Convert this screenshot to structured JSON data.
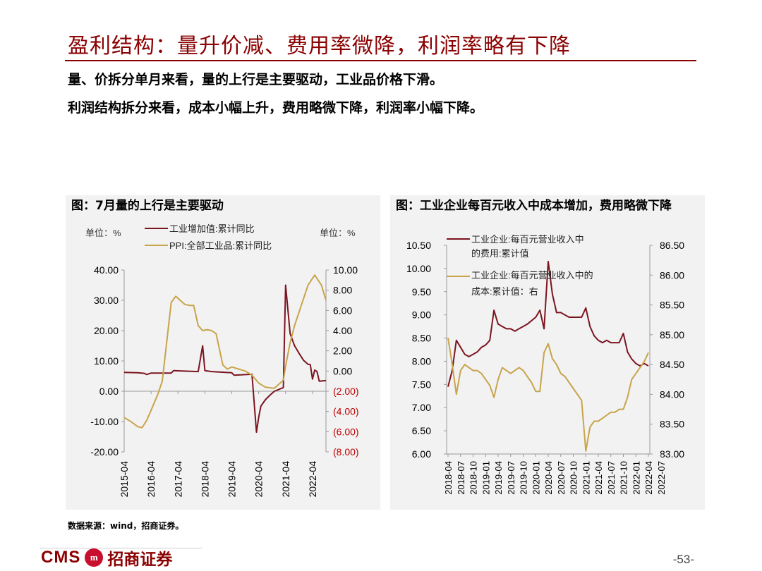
{
  "header": {
    "title": "盈利结构：量升价减、费用率微降，利润率略有下降",
    "line1": "量、价拆分单月来看，量的上行是主要驱动，工业品价格下滑。",
    "line2": "利润结构拆分来看，成本小幅上升，费用略微下降，利润率小幅下降。"
  },
  "colors": {
    "dark_red": "#7b1520",
    "gold": "#c8a44a",
    "red_text": "#c00000"
  },
  "footer": {
    "source": "数据来源：wind，招商证券。",
    "logo_text": "CMS",
    "logo_mark": "m",
    "logo_cn": "招商证券",
    "page": "-53-"
  },
  "chart_data": [
    {
      "type": "line",
      "title": "图：7月量的上行是主要驱动",
      "left_unit": "单位：%",
      "right_unit": "单位：%",
      "left_ticks": [
        "40.00",
        "30.00",
        "20.00",
        "10.00",
        "0.00",
        "-10.00",
        "-20.00"
      ],
      "right_ticks": [
        "10.00",
        "8.00",
        "6.00",
        "4.00",
        "2.00",
        "0.00",
        "(2.00)",
        "(4.00)",
        "(6.00)",
        "(8.00)"
      ],
      "ylim_left": [
        -20,
        40
      ],
      "ylim_right": [
        -8,
        10
      ],
      "x_labels": [
        "2015-04",
        "2016-04",
        "2017-04",
        "2018-04",
        "2019-04",
        "2020-04",
        "2021-04",
        "2022-04"
      ],
      "series": [
        {
          "name": "工业增加值:累计同比",
          "axis": "left",
          "points": [
            [
              0,
              6.2
            ],
            [
              6,
              6.1
            ],
            [
              9,
              5.9
            ],
            [
              10,
              5.5
            ],
            [
              12,
              6.0
            ],
            [
              21,
              6.0
            ],
            [
              22,
              6.8
            ],
            [
              33,
              6.5
            ],
            [
              35,
              15.0
            ],
            [
              36,
              6.8
            ],
            [
              39,
              6.5
            ],
            [
              48,
              6.1
            ],
            [
              49,
              5.3
            ],
            [
              57,
              5.6
            ],
            [
              59,
              -13.5
            ],
            [
              60,
              -8.5
            ],
            [
              61,
              -4.9
            ],
            [
              63,
              -2.8
            ],
            [
              65,
              -1.3
            ],
            [
              67,
              0.0
            ],
            [
              71,
              1.2
            ],
            [
              72,
              35.0
            ],
            [
              74,
              19.0
            ],
            [
              76,
              15.0
            ],
            [
              78,
              12.5
            ],
            [
              80,
              10.2
            ],
            [
              82,
              8.9
            ],
            [
              83,
              8.8
            ],
            [
              84,
              4.0
            ],
            [
              85,
              7.0
            ],
            [
              86,
              6.5
            ],
            [
              87,
              3.3
            ],
            [
              90,
              3.5
            ]
          ]
        },
        {
          "name": "PPI:全部工业品:累计同比",
          "axis": "right",
          "points": [
            [
              0,
              -4.6
            ],
            [
              3,
              -5.0
            ],
            [
              6,
              -5.5
            ],
            [
              8,
              -5.6
            ],
            [
              10,
              -4.9
            ],
            [
              12,
              -3.9
            ],
            [
              15,
              -2.3
            ],
            [
              17,
              -1.0
            ],
            [
              21,
              6.8
            ],
            [
              23,
              7.4
            ],
            [
              25,
              7.0
            ],
            [
              27,
              6.6
            ],
            [
              29,
              6.5
            ],
            [
              31,
              6.5
            ],
            [
              33,
              4.5
            ],
            [
              35,
              4.0
            ],
            [
              37,
              4.1
            ],
            [
              39,
              4.0
            ],
            [
              41,
              3.7
            ],
            [
              44,
              0.6
            ],
            [
              46,
              0.2
            ],
            [
              48,
              0.4
            ],
            [
              51,
              0.2
            ],
            [
              54,
              0.0
            ],
            [
              57,
              -0.4
            ],
            [
              60,
              -1.2
            ],
            [
              63,
              -1.6
            ],
            [
              67,
              -1.7
            ],
            [
              69,
              -1.3
            ],
            [
              71,
              -0.9
            ],
            [
              72,
              0.5
            ],
            [
              74,
              2.8
            ],
            [
              76,
              4.5
            ],
            [
              79,
              6.5
            ],
            [
              82,
              8.5
            ],
            [
              85,
              9.5
            ],
            [
              88,
              8.5
            ],
            [
              90,
              7.0
            ]
          ]
        }
      ]
    },
    {
      "type": "line",
      "title": "图：工业企业每百元收入中成本增加，费用略微下降",
      "left_ticks": [
        "10.50",
        "10.00",
        "9.50",
        "9.00",
        "8.50",
        "8.00",
        "7.50",
        "7.00",
        "6.50",
        "6.00"
      ],
      "right_ticks": [
        "86.50",
        "86.00",
        "85.50",
        "85.00",
        "84.50",
        "84.00",
        "83.50",
        "83.00"
      ],
      "ylim_left": [
        6.0,
        10.5
      ],
      "ylim_right": [
        83.0,
        86.5
      ],
      "x_labels": [
        "2018-04",
        "2018-07",
        "2018-10",
        "2019-01",
        "2019-04",
        "2019-07",
        "2019-10",
        "2020-01",
        "2020-04",
        "2020-07",
        "2020-10",
        "2021-01",
        "2021-04",
        "2021-07",
        "2021-10",
        "2022-01",
        "2022-04",
        "2022-07"
      ],
      "series": [
        {
          "name": "工业企业:每百元营业收入中的费用:累计值",
          "axis": "left",
          "points": [
            [
              0,
              7.45
            ],
            [
              1,
              7.8
            ],
            [
              2,
              8.45
            ],
            [
              3,
              8.3
            ],
            [
              4,
              8.15
            ],
            [
              5,
              8.1
            ],
            [
              6,
              8.15
            ],
            [
              7,
              8.2
            ],
            [
              8,
              8.3
            ],
            [
              9,
              8.35
            ],
            [
              10,
              8.45
            ],
            [
              11,
              9.1
            ],
            [
              12,
              8.8
            ],
            [
              13,
              8.75
            ],
            [
              14,
              8.7
            ],
            [
              15,
              8.7
            ],
            [
              16,
              8.65
            ],
            [
              17,
              8.7
            ],
            [
              18,
              8.75
            ],
            [
              19,
              8.8
            ],
            [
              21,
              8.95
            ],
            [
              22,
              9.1
            ],
            [
              23,
              8.7
            ],
            [
              24,
              10.15
            ],
            [
              25,
              9.45
            ],
            [
              26,
              9.05
            ],
            [
              27,
              9.05
            ],
            [
              28,
              9.0
            ],
            [
              29,
              8.95
            ],
            [
              30,
              8.95
            ],
            [
              31,
              8.95
            ],
            [
              32,
              8.95
            ],
            [
              33,
              9.15
            ],
            [
              34,
              8.75
            ],
            [
              35,
              8.55
            ],
            [
              36,
              8.45
            ],
            [
              37,
              8.4
            ],
            [
              38,
              8.45
            ],
            [
              39,
              8.4
            ],
            [
              40,
              8.4
            ],
            [
              41,
              8.4
            ],
            [
              42,
              8.6
            ],
            [
              43,
              8.2
            ],
            [
              44,
              8.05
            ],
            [
              45,
              7.95
            ],
            [
              46,
              7.9
            ],
            [
              47,
              7.95
            ],
            [
              48,
              7.9
            ]
          ]
        },
        {
          "name": "工业企业:每百元营业收入中的成本:累计值：右",
          "axis": "right",
          "points": [
            [
              0,
              84.95
            ],
            [
              1,
              84.5
            ],
            [
              2,
              84.0
            ],
            [
              3,
              84.4
            ],
            [
              4,
              84.5
            ],
            [
              5,
              84.45
            ],
            [
              6,
              84.4
            ],
            [
              7,
              84.4
            ],
            [
              8,
              84.35
            ],
            [
              9,
              84.25
            ],
            [
              10,
              84.15
            ],
            [
              11,
              83.95
            ],
            [
              12,
              84.25
            ],
            [
              13,
              84.45
            ],
            [
              14,
              84.4
            ],
            [
              15,
              84.35
            ],
            [
              16,
              84.4
            ],
            [
              17,
              84.45
            ],
            [
              18,
              84.4
            ],
            [
              19,
              84.3
            ],
            [
              20,
              84.2
            ],
            [
              21,
              84.05
            ],
            [
              22,
              84.05
            ],
            [
              23,
              84.7
            ],
            [
              24,
              84.85
            ],
            [
              25,
              84.6
            ],
            [
              26,
              84.5
            ],
            [
              27,
              84.35
            ],
            [
              28,
              84.3
            ],
            [
              29,
              84.2
            ],
            [
              30,
              84.1
            ],
            [
              31,
              84.0
            ],
            [
              32,
              83.9
            ],
            [
              33,
              83.05
            ],
            [
              34,
              83.45
            ],
            [
              35,
              83.55
            ],
            [
              36,
              83.55
            ],
            [
              37,
              83.6
            ],
            [
              38,
              83.65
            ],
            [
              39,
              83.7
            ],
            [
              40,
              83.7
            ],
            [
              41,
              83.75
            ],
            [
              42,
              83.75
            ],
            [
              43,
              83.95
            ],
            [
              44,
              84.25
            ],
            [
              45,
              84.35
            ],
            [
              46,
              84.45
            ],
            [
              47,
              84.55
            ],
            [
              48,
              84.7
            ]
          ]
        }
      ]
    }
  ]
}
